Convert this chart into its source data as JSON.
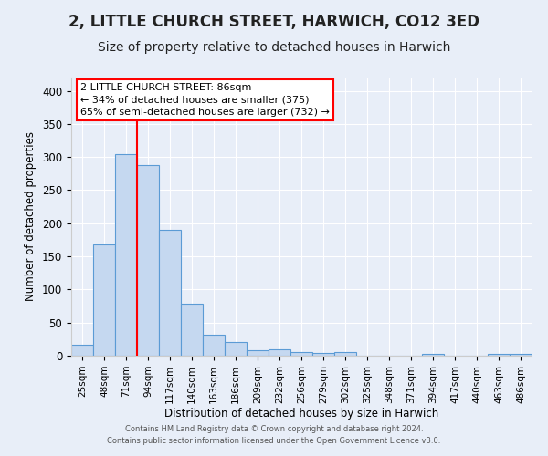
{
  "title": "2, LITTLE CHURCH STREET, HARWICH, CO12 3ED",
  "subtitle": "Size of property relative to detached houses in Harwich",
  "xlabel": "Distribution of detached houses by size in Harwich",
  "ylabel": "Number of detached properties",
  "categories": [
    "25sqm",
    "48sqm",
    "71sqm",
    "94sqm",
    "117sqm",
    "140sqm",
    "163sqm",
    "186sqm",
    "209sqm",
    "232sqm",
    "256sqm",
    "279sqm",
    "302sqm",
    "325sqm",
    "348sqm",
    "371sqm",
    "394sqm",
    "417sqm",
    "440sqm",
    "463sqm",
    "486sqm"
  ],
  "values": [
    16,
    168,
    305,
    288,
    190,
    78,
    32,
    20,
    8,
    10,
    6,
    4,
    5,
    0,
    0,
    0,
    3,
    0,
    0,
    3,
    3
  ],
  "bar_color": "#c5d8f0",
  "bar_edge_color": "#5b9bd5",
  "annotation_text_line1": "2 LITTLE CHURCH STREET: 86sqm",
  "annotation_text_line2": "← 34% of detached houses are smaller (375)",
  "annotation_text_line3": "65% of semi-detached houses are larger (732) →",
  "footer_line1": "Contains HM Land Registry data © Crown copyright and database right 2024.",
  "footer_line2": "Contains public sector information licensed under the Open Government Licence v3.0.",
  "ylim": [
    0,
    420
  ],
  "yticks": [
    0,
    50,
    100,
    150,
    200,
    250,
    300,
    350,
    400
  ],
  "background_color": "#e8eef8",
  "grid_color": "#ffffff",
  "title_fontsize": 12,
  "subtitle_fontsize": 10,
  "red_line_x": 2.5
}
